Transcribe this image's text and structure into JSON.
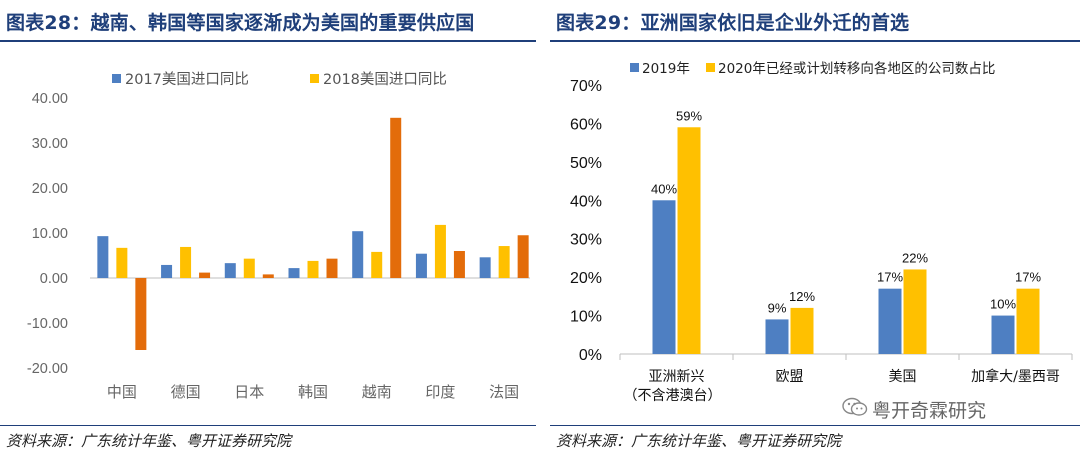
{
  "left": {
    "title": "图表28：越南、韩国等国家逐渐成为美国的重要供应国",
    "source": "资料来源：广东统计年鉴、粤开证券研究院"
  },
  "right": {
    "title": "图表29：亚洲国家依旧是企业外迁的首选",
    "source": "资料来源：广东统计年鉴、粤开证券研究院"
  },
  "watermark": {
    "text": "粤开奇霖研究",
    "icon": "wechat-icon"
  },
  "colors": {
    "blue": "#4e7fc2",
    "yellow": "#ffc000",
    "orange": "#e36c0a",
    "title": "#1f3f7a"
  },
  "chart_data": [
    {
      "type": "bar",
      "categories": [
        "中国",
        "德国",
        "日本",
        "韩国",
        "越南",
        "印度",
        "法国"
      ],
      "series": [
        {
          "name": "2017美国进口同比",
          "values": [
            9.3,
            2.9,
            3.3,
            2.2,
            10.4,
            5.4,
            4.6
          ]
        },
        {
          "name": "2018美国进口同比",
          "values": [
            6.7,
            6.9,
            4.3,
            3.8,
            5.8,
            11.8,
            7.1
          ]
        },
        {
          "name": "",
          "values": [
            -16.0,
            1.2,
            0.8,
            4.3,
            35.6,
            6.0,
            9.5
          ]
        }
      ],
      "ylim": [
        -20,
        40
      ],
      "yticks": [
        "40.00",
        "30.00",
        "20.00",
        "10.00",
        "0.00",
        "-10.00",
        "-20.00"
      ],
      "legend": "top",
      "grid": false
    },
    {
      "type": "bar",
      "categories": [
        "亚洲新兴",
        "欧盟",
        "美国",
        "加拿大/墨西哥"
      ],
      "category_sublabels": [
        "（不含港澳台）",
        "",
        "",
        ""
      ],
      "series": [
        {
          "name": "2019年",
          "values": [
            40,
            9,
            17,
            10
          ],
          "labels": [
            "40%",
            "9%",
            "17%",
            "10%"
          ]
        },
        {
          "name": "2020年已经或计划转移向各地区的公司数占比",
          "values": [
            59,
            12,
            22,
            17
          ],
          "labels": [
            "59%",
            "12%",
            "22%",
            "17%"
          ]
        }
      ],
      "ylim": [
        0,
        70
      ],
      "yticks": [
        "70%",
        "60%",
        "50%",
        "40%",
        "30%",
        "20%",
        "10%",
        "0%"
      ],
      "legend": "top",
      "grid": false
    }
  ]
}
